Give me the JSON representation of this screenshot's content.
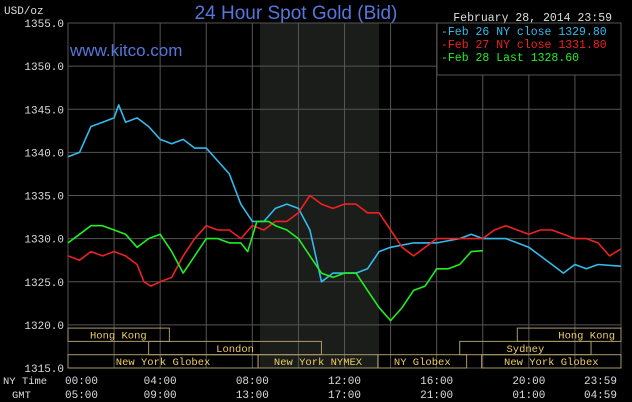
{
  "chart_data": {
    "type": "line",
    "title": "24 Hour Spot Gold (Bid)",
    "watermark": "www.kitco.com",
    "date_label": "February 28, 2014 23:59",
    "ylabel": "USD/oz",
    "ylim": [
      1315,
      1355
    ],
    "yticks": [
      "1355.0",
      "1350.0",
      "1345.0",
      "1340.0",
      "1335.0",
      "1330.0",
      "1325.0",
      "1320.0",
      "1315.0"
    ],
    "xlim_hours": [
      0,
      24
    ],
    "x_rows": [
      {
        "label": "NY Time",
        "ticks": [
          "00:00",
          "04:00",
          "08:00",
          "12:00",
          "16:00",
          "20:00",
          "23:59"
        ]
      },
      {
        "label": "GMT",
        "ticks": [
          "05:00",
          "09:00",
          "13:00",
          "17:00",
          "21:00",
          "01:00",
          "04:59"
        ]
      }
    ],
    "grid": true,
    "legend_position": "top-right",
    "shaded_hours": [
      8.33,
      13.5
    ],
    "series": [
      {
        "name": "Feb 26 NY close 1329.80",
        "color": "#33bbee",
        "x": [
          0,
          0.5,
          1,
          1.5,
          2,
          2.2,
          2.5,
          3,
          3.5,
          4,
          4.5,
          5,
          5.5,
          6,
          6.5,
          7,
          7.5,
          8,
          8.5,
          9,
          9.5,
          10,
          10.5,
          11,
          11.5,
          12,
          12.5,
          13,
          13.5,
          14,
          15,
          16,
          17,
          17.5,
          18,
          19,
          19.5,
          20,
          20.5,
          21,
          21.5,
          22,
          22.5,
          23,
          23.99
        ],
        "y": [
          1339.5,
          1340,
          1343,
          1343.5,
          1344,
          1345.5,
          1343.5,
          1344,
          1343,
          1341.5,
          1341,
          1341.5,
          1340.5,
          1340.5,
          1339,
          1337.5,
          1334,
          1332,
          1332,
          1333.5,
          1334,
          1333.5,
          1331,
          1325,
          1326,
          1326,
          1326,
          1326.5,
          1328.5,
          1329,
          1329.5,
          1329.5,
          1330,
          1330.5,
          1330,
          1330,
          1329.5,
          1329,
          1328,
          1327,
          1326,
          1327,
          1326.5,
          1327,
          1326.8
        ]
      },
      {
        "name": "Feb 27 NY close 1331.80",
        "color": "#ee2222",
        "x": [
          0,
          0.5,
          1,
          1.5,
          2,
          2.5,
          3,
          3.3,
          3.6,
          4,
          4.5,
          5,
          5.5,
          6,
          6.5,
          7,
          7.5,
          8,
          8.5,
          9,
          9.5,
          10,
          10.5,
          11,
          11.5,
          12,
          12.5,
          13,
          13.5,
          14,
          14.5,
          15,
          15.5,
          16,
          17,
          18,
          18.5,
          19,
          19.5,
          20,
          20.5,
          21,
          21.5,
          22,
          22.5,
          23,
          23.5,
          23.99
        ],
        "y": [
          1328,
          1327.5,
          1328.5,
          1328,
          1328.5,
          1328,
          1327,
          1325,
          1324.5,
          1325,
          1325.5,
          1328,
          1330,
          1331.5,
          1331,
          1331,
          1330,
          1331.5,
          1331,
          1332,
          1332,
          1333,
          1335,
          1334,
          1333.5,
          1334,
          1334,
          1333,
          1333,
          1331,
          1329,
          1328,
          1329,
          1330,
          1330,
          1330,
          1331,
          1331.5,
          1331,
          1330.5,
          1331,
          1331,
          1330.5,
          1330,
          1330,
          1329.5,
          1328,
          1328.8
        ]
      },
      {
        "name": "Feb 28 Last 1328.60",
        "color": "#22ee22",
        "x": [
          0,
          0.5,
          1,
          1.5,
          2,
          2.5,
          3,
          3.5,
          4,
          4.5,
          5,
          5.5,
          6,
          6.5,
          7,
          7.5,
          7.8,
          8.2,
          8.7,
          9,
          9.5,
          10,
          10.5,
          11,
          11.5,
          12,
          12.5,
          13,
          13.5,
          14,
          14.5,
          15,
          15.5,
          16,
          16.5,
          17,
          17.5,
          18
        ],
        "y": [
          1329.5,
          1330.5,
          1331.5,
          1331.5,
          1331,
          1330.5,
          1329,
          1330,
          1330.5,
          1328.5,
          1326,
          1328,
          1330,
          1330,
          1329.5,
          1329.5,
          1328.5,
          1332,
          1332,
          1331.5,
          1331,
          1330,
          1328,
          1326,
          1325.5,
          1326,
          1326,
          1324,
          1322,
          1320.5,
          1322,
          1324,
          1324.5,
          1326.5,
          1326.5,
          1327,
          1328.5,
          1328.6
        ]
      }
    ],
    "sessions": [
      {
        "name": "Hong Kong",
        "row": 0,
        "start": 0,
        "end": 4.4
      },
      {
        "name": "Hong Kong",
        "row": 0,
        "start": 19.5,
        "end": 24
      },
      {
        "name": "London",
        "row": 1,
        "start": 3.5,
        "end": 11
      },
      {
        "name": "Sydney",
        "row": 1,
        "start": 17,
        "end": 22.7
      },
      {
        "name": "New York Globex",
        "row": 2,
        "start": 0,
        "end": 8.25
      },
      {
        "name": "New York NYMEX",
        "row": 2,
        "start": 8.25,
        "end": 13.45
      },
      {
        "name": "NY Globex",
        "row": 2,
        "start": 13.45,
        "end": 17.3
      },
      {
        "name": "New York Globex",
        "row": 2,
        "start": 17.95,
        "end": 24
      }
    ],
    "colors": {
      "background": "#000000",
      "grid": "#555555",
      "title": "#5577dd",
      "text": "#dddddd",
      "session_text": "#eecc66",
      "session_border": "#aa9966",
      "shade": "#1a1d1a"
    }
  }
}
